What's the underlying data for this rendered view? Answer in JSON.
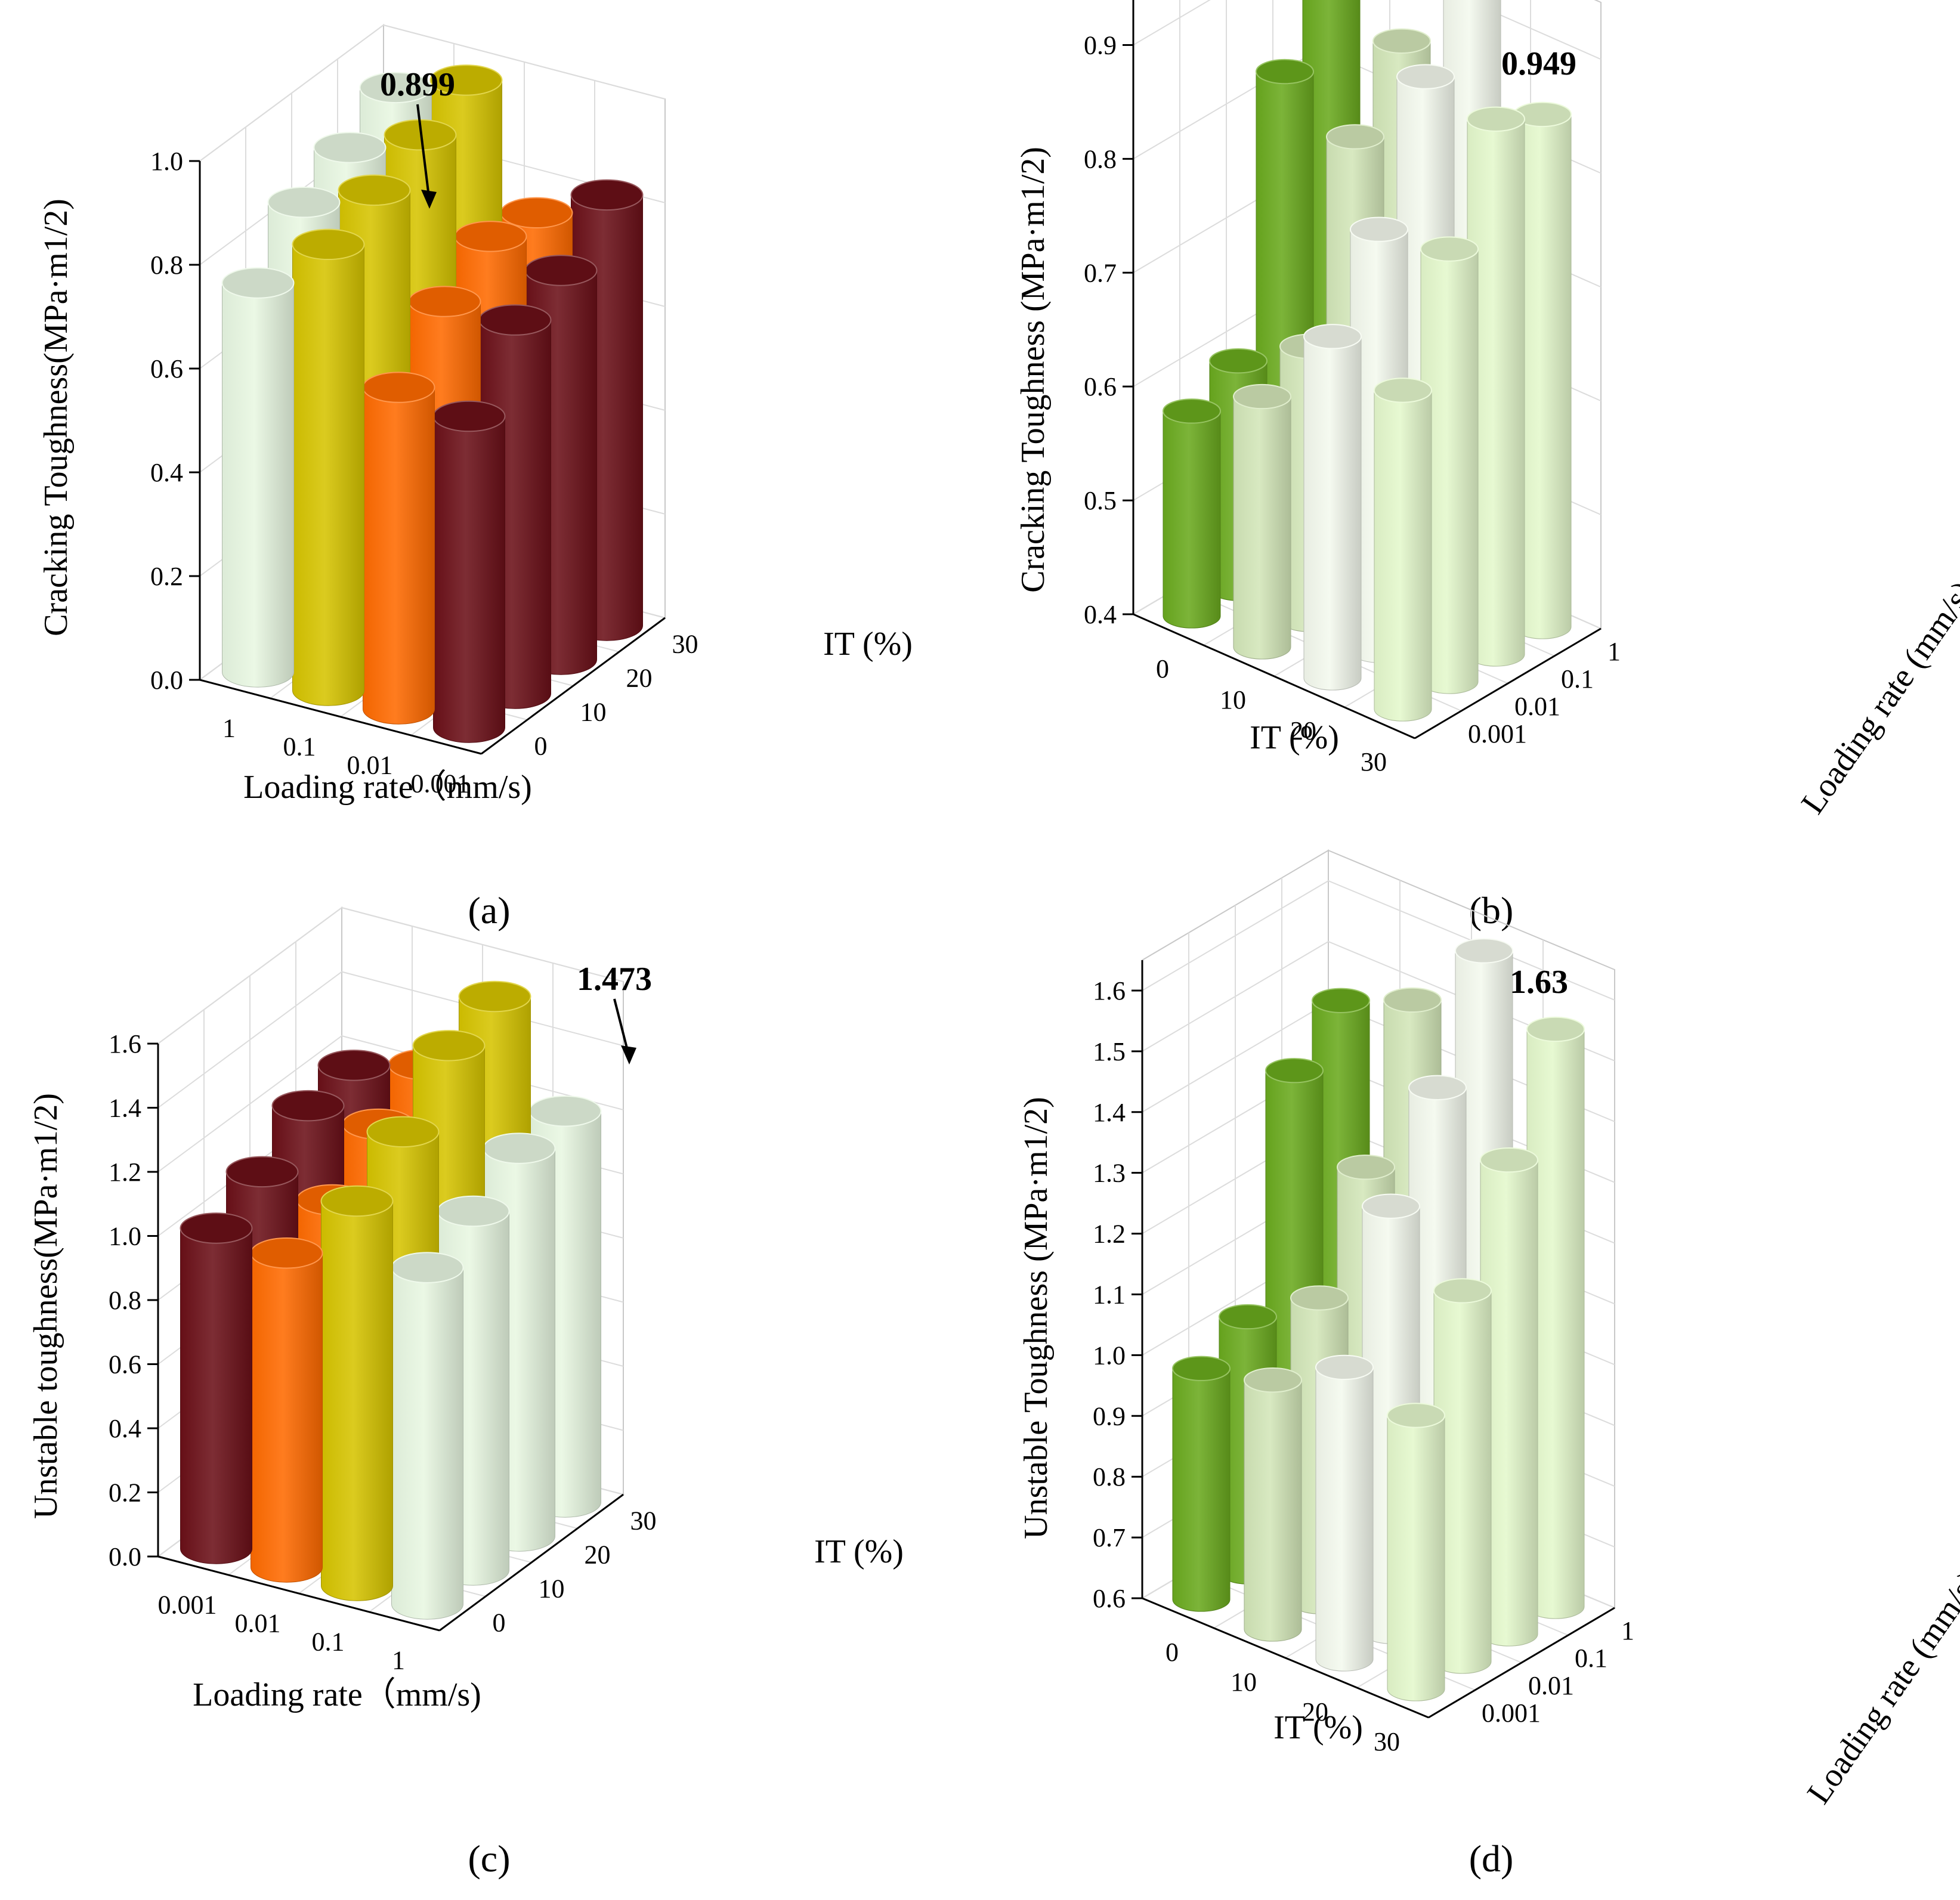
{
  "panels": [
    {
      "id": "a",
      "caption": "(a)",
      "chart_data": {
        "type": "bar",
        "style": "3d-cylinder",
        "zlabel": "Cracking Toughness(MPa·m1/2)",
        "xlabel": "Loading rate（mm/s)",
        "ylabel": "IT (%)",
        "x_categories": [
          "1",
          "0.1",
          "0.01",
          "0.001"
        ],
        "y_categories": [
          "0",
          "10",
          "20",
          "30"
        ],
        "zlim": [
          0,
          1.0
        ],
        "zticks": [
          "0.0",
          "0.2",
          "0.4",
          "0.6",
          "0.8",
          "1.0"
        ],
        "annotation": "0.899",
        "colors": [
          "#e8f7e2",
          "#d6c400",
          "#ff6a00",
          "#6b1018"
        ],
        "series": [
          {
            "x": "1",
            "values": [
              0.75,
              0.84,
              0.88,
              0.93
            ]
          },
          {
            "x": "0.1",
            "values": [
              0.86,
              0.899,
              0.94,
              0.98
            ]
          },
          {
            "x": "0.01",
            "values": [
              0.62,
              0.72,
              0.78,
              0.76
            ]
          },
          {
            "x": "0.001",
            "values": [
              0.6,
              0.72,
              0.75,
              0.83
            ]
          }
        ]
      }
    },
    {
      "id": "b",
      "caption": "(b)",
      "chart_data": {
        "type": "bar",
        "style": "3d-cylinder",
        "zlabel": "Cracking Toughness (MPa·m1/2)",
        "xlabel": "IT (%)",
        "ylabel": "Loading rate (mm/s)",
        "x_categories": [
          "0",
          "10",
          "20",
          "30"
        ],
        "y_categories": [
          "0.001",
          "0.01",
          "0.1",
          "1"
        ],
        "zlim": [
          0.4,
          0.95
        ],
        "zticks": [
          "0.4",
          "0.5",
          "0.6",
          "0.7",
          "0.8",
          "0.9"
        ],
        "annotation": "0.949",
        "colors": [
          "#6aaa1e",
          "#d3e6b8",
          "#f4f9ee",
          "#e4f8cc"
        ],
        "series": [
          {
            "x": "0",
            "values": [
              0.58,
              0.6,
              0.83,
              0.89
            ]
          },
          {
            "x": "10",
            "values": [
              0.62,
              0.64,
              0.8,
              0.86
            ]
          },
          {
            "x": "20",
            "values": [
              0.7,
              0.77,
              0.88,
              0.949
            ]
          },
          {
            "x": "30",
            "values": [
              0.68,
              0.78,
              0.87,
              0.85
            ]
          }
        ]
      }
    },
    {
      "id": "c",
      "caption": "(c)",
      "chart_data": {
        "type": "bar",
        "style": "3d-cylinder",
        "zlabel": "Unstable toughness(MPa·m1/2)",
        "xlabel": "Loading rate（mm/s)",
        "ylabel": "IT (%)",
        "x_categories": [
          "0.001",
          "0.01",
          "0.1",
          "1"
        ],
        "y_categories": [
          "0",
          "10",
          "20",
          "30"
        ],
        "zlim": [
          0,
          1.6
        ],
        "zticks": [
          "0.0",
          "0.2",
          "0.4",
          "0.6",
          "0.8",
          "1.0",
          "1.2",
          "1.4",
          "1.6"
        ],
        "annotation": "1.473",
        "colors": [
          "#6b1018",
          "#ff6a00",
          "#d6c400",
          "#e8f7e2"
        ],
        "series": [
          {
            "x": "0.001",
            "values": [
              1.0,
              1.07,
              1.17,
              1.19
            ]
          },
          {
            "x": "0.01",
            "values": [
              0.98,
              1.04,
              1.17,
              1.25
            ]
          },
          {
            "x": "0.1",
            "values": [
              1.2,
              1.31,
              1.473,
              1.52
            ]
          },
          {
            "x": "1",
            "values": [
              1.05,
              1.12,
              1.21,
              1.22
            ]
          }
        ]
      }
    },
    {
      "id": "d",
      "caption": "(d)",
      "chart_data": {
        "type": "bar",
        "style": "3d-cylinder",
        "zlabel": "Unstable Toughness (MPa·m1/2)",
        "xlabel": "IT (%)",
        "ylabel": "Loading rate (mm/s)",
        "x_categories": [
          "0",
          "10",
          "20",
          "30"
        ],
        "y_categories": [
          "0.001",
          "0.01",
          "0.1",
          "1"
        ],
        "zlim": [
          0.6,
          1.65
        ],
        "zticks": [
          "0.6",
          "0.7",
          "0.8",
          "0.9",
          "1.0",
          "1.1",
          "1.2",
          "1.3",
          "1.4",
          "1.5",
          "1.6"
        ],
        "annotation": "1.63",
        "colors": [
          "#6aaa1e",
          "#d3e6b8",
          "#f4f9ee",
          "#e4f8cc"
        ],
        "series": [
          {
            "x": "0",
            "values": [
              0.98,
              1.02,
              1.38,
              1.45
            ]
          },
          {
            "x": "10",
            "values": [
              1.01,
              1.1,
              1.27,
              1.5
            ]
          },
          {
            "x": "20",
            "values": [
              1.08,
              1.3,
              1.45,
              1.63
            ]
          },
          {
            "x": "30",
            "values": [
              1.05,
              1.21,
              1.38,
              1.55
            ]
          }
        ]
      }
    }
  ]
}
